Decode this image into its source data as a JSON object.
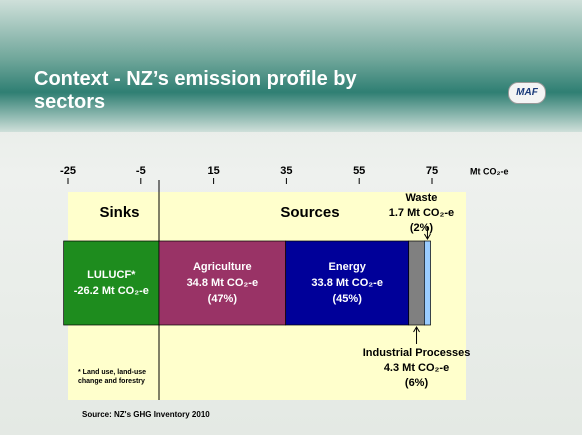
{
  "header": {
    "title": "Context - NZ’s emission profile by sectors",
    "logo": "MAF"
  },
  "chart_data": {
    "type": "stacked-bar-horizontal",
    "xlim": [
      -25,
      75
    ],
    "xticks": [
      -25,
      -5,
      15,
      35,
      55,
      75
    ],
    "x_unit": "Mt CO₂-e",
    "groups": [
      "Sinks",
      "Sources"
    ],
    "series": [
      {
        "name": "LULUCF*",
        "color": "#1e8c1e",
        "values": [
          -26.2
        ],
        "value_labels": [
          "-26.2 Mt CO₂-e"
        ]
      },
      {
        "name": "Agriculture",
        "color": "#993366",
        "values": [
          34.8
        ],
        "value_labels": [
          "34.8 Mt CO₂-e"
        ],
        "share": 47,
        "share_label": "(47%)"
      },
      {
        "name": "Energy",
        "color": "#000099",
        "values": [
          33.8
        ],
        "value_labels": [
          "33.8 Mt CO₂-e"
        ],
        "share": 45,
        "share_label": "(45%)"
      },
      {
        "name": "Industrial Processes",
        "color": "#808080",
        "values": [
          4.3
        ],
        "value_labels": [
          "4.3 Mt CO₂-e"
        ],
        "share": 6,
        "share_label": "(6%)"
      },
      {
        "name": "Waste",
        "color": "#99ccff",
        "values": [
          1.7
        ],
        "value_labels": [
          "1.7 Mt CO₂-e"
        ],
        "share": 2,
        "share_label": "(2%)"
      }
    ],
    "footnote": "* Land use, land-use change and forestry",
    "source": "Source: NZ's GHG Inventory 2010"
  }
}
